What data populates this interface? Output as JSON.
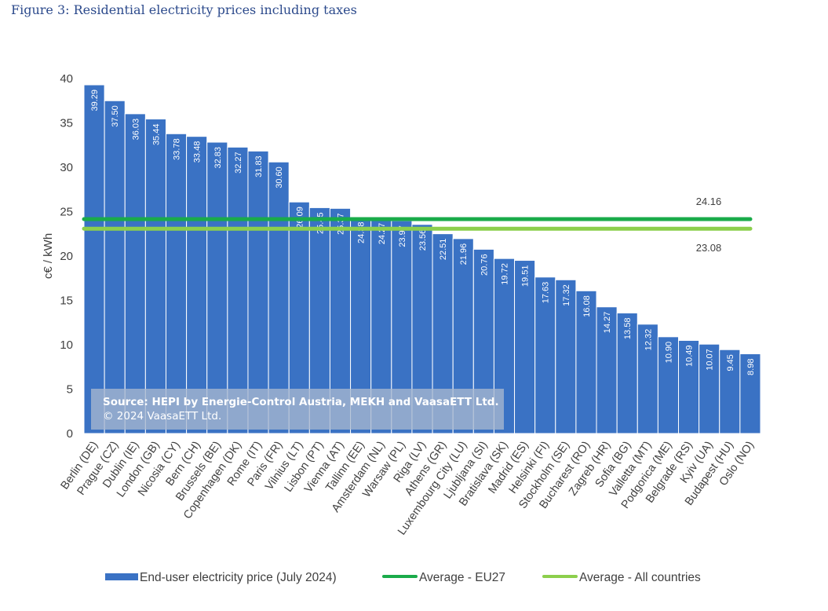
{
  "figure_title": "Figure 3: Residential electricity prices including taxes",
  "source_line1": "Source: HEPI by Energie-Control Austria, MEKH and VaasaETT Ltd.",
  "source_line2": "© 2024 VaasaETT Ltd.",
  "colors": {
    "bar": "#3a72c4",
    "bar_edge": "#ffffff",
    "eu27": "#1aab4a",
    "all": "#8ccf4c",
    "title": "#2c4a8c"
  },
  "chart_data": {
    "type": "bar",
    "ylabel": "c€ / kWh",
    "ylim": [
      0,
      40
    ],
    "yticks": [
      0,
      5,
      10,
      15,
      20,
      25,
      30,
      35,
      40
    ],
    "grid": false,
    "legend_position": "bottom",
    "categories": [
      "Berlin (DE)",
      "Prague (CZ)",
      "Dublin (IE)",
      "London (GB)",
      "Nicosia (CY)",
      "Bern (CH)",
      "Brussels (BE)",
      "Copenhagen (DK)",
      "Rome (IT)",
      "Paris (FR)",
      "Vilnius (LT)",
      "Lisbon (PT)",
      "Vienna (AT)",
      "Tallinn (EE)",
      "Amsterdam (NL)",
      "Warsaw (PL)",
      "Riga (LV)",
      "Athens (GR)",
      "Luxembourg City (LU)",
      "Ljubljana (SI)",
      "Bratislava (SK)",
      "Madrid (ES)",
      "Helsinki (FI)",
      "Stockholm (SE)",
      "Bucharest (RO)",
      "Zagreb (HR)",
      "Sofia (BG)",
      "Valletta (MT)",
      "Podgorica (ME)",
      "Belgrade (RS)",
      "Kyiv (UA)",
      "Budapest (HU)",
      "Oslo (NO)"
    ],
    "series": [
      {
        "name": "End-user electricity price (July 2024)",
        "values": [
          39.29,
          37.5,
          36.03,
          35.44,
          33.78,
          33.48,
          32.83,
          32.27,
          31.83,
          30.6,
          26.09,
          25.45,
          25.37,
          24.38,
          24.27,
          23.97,
          23.56,
          22.51,
          21.96,
          20.76,
          19.72,
          19.51,
          17.63,
          17.32,
          16.08,
          14.27,
          13.58,
          12.32,
          10.9,
          10.49,
          10.07,
          9.45,
          8.98
        ]
      },
      {
        "name": "Average - EU27",
        "value": 24.16
      },
      {
        "name": "Average - All countries",
        "value": 23.08
      }
    ],
    "value_labels": [
      "39.29",
      "37.50",
      "36.03",
      "35.44",
      "33.78",
      "33.48",
      "32.83",
      "32.27",
      "31.83",
      "30.60",
      "26.09",
      "25.45",
      "25.37",
      "24.38",
      "24.27",
      "23.97",
      "23.56",
      "22.51",
      "21.96",
      "20.76",
      "19.72",
      "19.51",
      "17.63",
      "17.32",
      "16.08",
      "14.27",
      "13.58",
      "12.32",
      "10.90",
      "10.49",
      "10.07",
      "9.45",
      "8.98"
    ],
    "avg_labels": [
      "24.16",
      "23.08"
    ]
  }
}
